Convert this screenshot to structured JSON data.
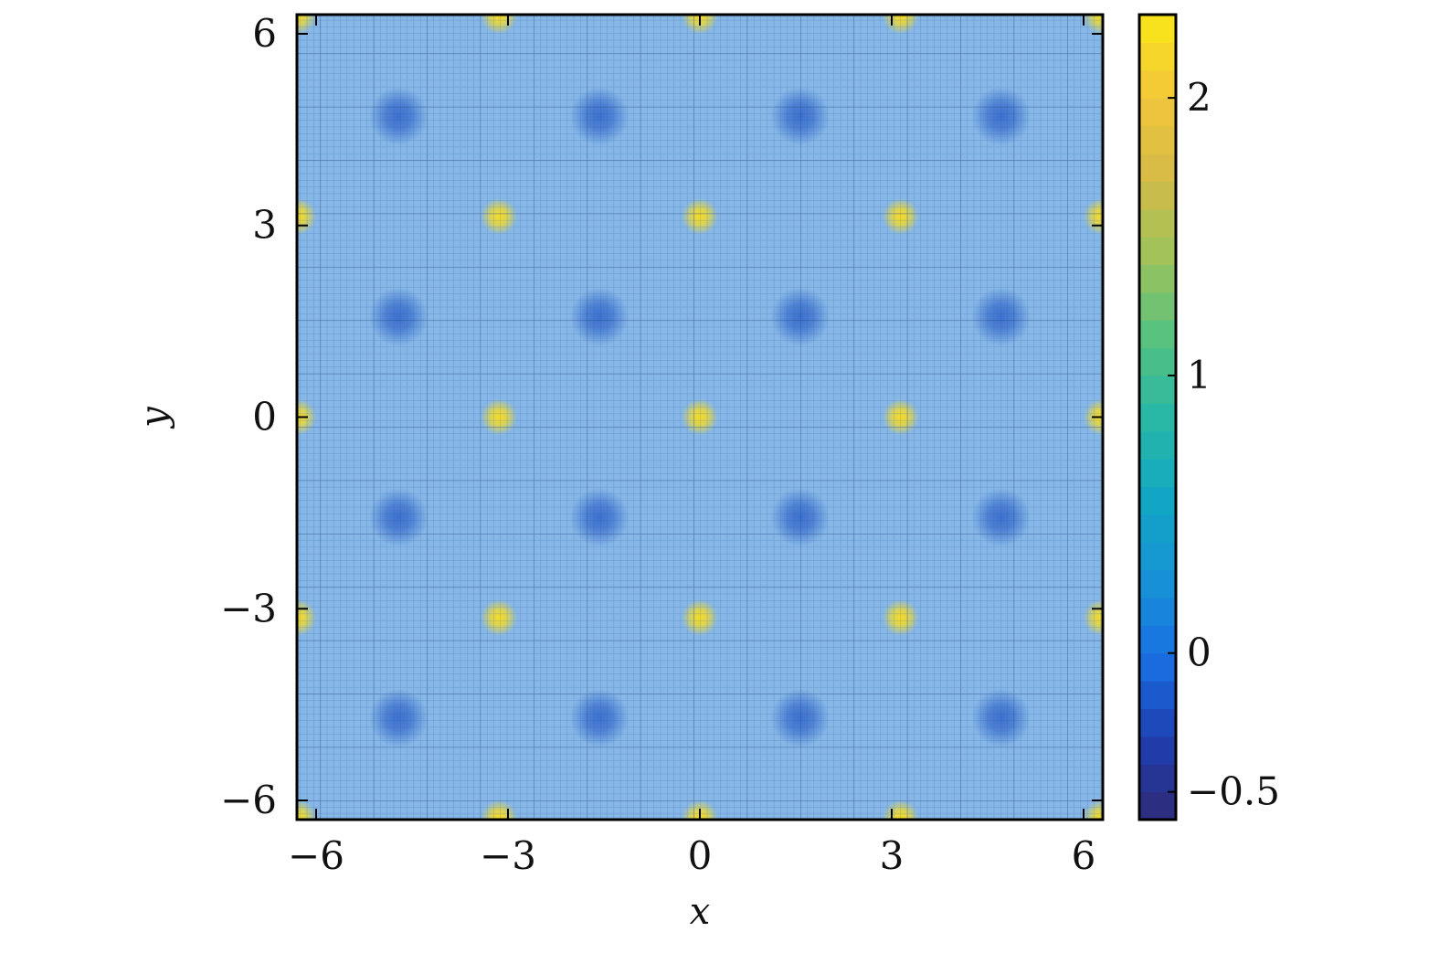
{
  "chart_data": {
    "type": "heatmap",
    "title": "",
    "xlabel": "x",
    "ylabel": "y",
    "xlim": [
      -6.3,
      6.3
    ],
    "ylim": [
      -6.3,
      6.3
    ],
    "x_ticks": [
      {
        "value": -6,
        "label": "−6"
      },
      {
        "value": -3,
        "label": "−3"
      },
      {
        "value": 0,
        "label": "0"
      },
      {
        "value": 3,
        "label": "3"
      },
      {
        "value": 6,
        "label": "6"
      }
    ],
    "y_ticks": [
      {
        "value": 6,
        "label": "6"
      },
      {
        "value": 3,
        "label": "3"
      },
      {
        "value": 0,
        "label": "0"
      },
      {
        "value": -3,
        "label": "−3"
      },
      {
        "value": -6,
        "label": "−6"
      }
    ],
    "colorbar": {
      "range": [
        -0.6,
        2.3
      ],
      "ticks": [
        {
          "value": 2,
          "label": "2"
        },
        {
          "value": 1,
          "label": "1"
        },
        {
          "value": 0,
          "label": "0"
        },
        {
          "value": -0.5,
          "label": "−0.5"
        }
      ],
      "colormap": [
        "#2d2a77",
        "#1f3fb0",
        "#1870e3",
        "#1892d6",
        "#12a7c4",
        "#29b8a6",
        "#56c27f",
        "#9fc35a",
        "#d5bb47",
        "#f3c63a",
        "#f9e818"
      ]
    },
    "background_value": 0.4,
    "grid_lines": true,
    "peak_value": 2.2,
    "peaks": [
      {
        "x": -6.28,
        "y": 6.28
      },
      {
        "x": -3.14,
        "y": 6.28
      },
      {
        "x": 0,
        "y": 6.28
      },
      {
        "x": 3.14,
        "y": 6.28
      },
      {
        "x": 6.28,
        "y": 6.28
      },
      {
        "x": -6.28,
        "y": 3.14
      },
      {
        "x": -3.14,
        "y": 3.14
      },
      {
        "x": 0,
        "y": 3.14
      },
      {
        "x": 3.14,
        "y": 3.14
      },
      {
        "x": 6.28,
        "y": 3.14
      },
      {
        "x": -6.28,
        "y": 0
      },
      {
        "x": -3.14,
        "y": 0
      },
      {
        "x": 0,
        "y": 0
      },
      {
        "x": 3.14,
        "y": 0
      },
      {
        "x": 6.28,
        "y": 0
      },
      {
        "x": -6.28,
        "y": -3.14
      },
      {
        "x": -3.14,
        "y": -3.14
      },
      {
        "x": 0,
        "y": -3.14
      },
      {
        "x": 3.14,
        "y": -3.14
      },
      {
        "x": 6.28,
        "y": -3.14
      },
      {
        "x": -6.28,
        "y": -6.28
      },
      {
        "x": -3.14,
        "y": -6.28
      },
      {
        "x": 0,
        "y": -6.28
      },
      {
        "x": 3.14,
        "y": -6.28
      },
      {
        "x": 6.28,
        "y": -6.28
      }
    ],
    "trough_value": -0.45,
    "troughs": [
      {
        "x": -4.71,
        "y": 4.71
      },
      {
        "x": -1.57,
        "y": 4.71
      },
      {
        "x": 1.57,
        "y": 4.71
      },
      {
        "x": 4.71,
        "y": 4.71
      },
      {
        "x": -4.71,
        "y": 1.57
      },
      {
        "x": -1.57,
        "y": 1.57
      },
      {
        "x": 1.57,
        "y": 1.57
      },
      {
        "x": 4.71,
        "y": 1.57
      },
      {
        "x": -4.71,
        "y": -1.57
      },
      {
        "x": -1.57,
        "y": -1.57
      },
      {
        "x": 1.57,
        "y": -1.57
      },
      {
        "x": 4.71,
        "y": -1.57
      },
      {
        "x": -4.71,
        "y": -4.71
      },
      {
        "x": -1.57,
        "y": -4.71
      },
      {
        "x": 1.57,
        "y": -4.71
      },
      {
        "x": 4.71,
        "y": -4.71
      }
    ]
  }
}
